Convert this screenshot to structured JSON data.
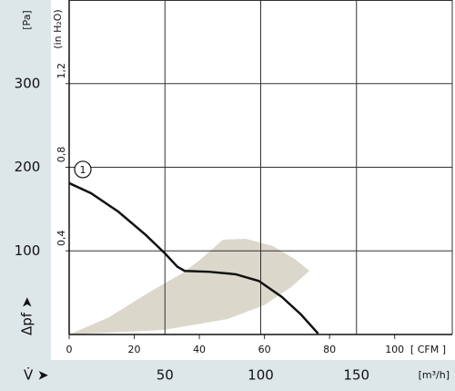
{
  "chart_data": {
    "type": "line",
    "y_unit": "[Pa]",
    "y_label": "Δpf ➤",
    "y2_unit": "(in H₂O)",
    "x_label": "V̇ ➤",
    "x_unit": "[m³/h]",
    "x2_unit": "[ CFM ]",
    "xlim": [
      0,
      200
    ],
    "xticks": [
      50,
      100,
      150
    ],
    "ylim": [
      0,
      400
    ],
    "yticks": [
      100,
      200,
      300
    ],
    "x2lim": [
      0,
      117.7
    ],
    "x2ticks": [
      0,
      20,
      40,
      60,
      80,
      100
    ],
    "y2lim": [
      0,
      1.6
    ],
    "y2ticks": [
      {
        "value": 0.4,
        "label": "0,4"
      },
      {
        "value": 0.8,
        "label": "0,8"
      },
      {
        "value": 1.2,
        "label": "1,2"
      }
    ],
    "grid": true,
    "series": [
      {
        "name": "1",
        "color": "#111111",
        "x": [
          0,
          11.4,
          25.6,
          40,
          50,
          56.5,
          60.3,
          73,
          87,
          99,
          111,
          121,
          130
        ],
        "values": [
          181,
          169,
          147,
          119,
          97,
          81,
          76,
          75,
          72,
          64,
          45,
          24,
          1
        ]
      }
    ],
    "region": {
      "color": "#dcd7cb",
      "x": [
        0,
        20.9,
        42.3,
        58.9,
        68.4,
        80.3,
        92.2,
        106.4,
        118.3,
        125.4,
        115.9,
        101.7,
        82.7,
        49.4
      ],
      "values": [
        0,
        20.7,
        51.2,
        73,
        89.4,
        113.4,
        114.4,
        105.7,
        89.4,
        76.3,
        56.7,
        34.9,
        18.5,
        5.4
      ]
    }
  }
}
